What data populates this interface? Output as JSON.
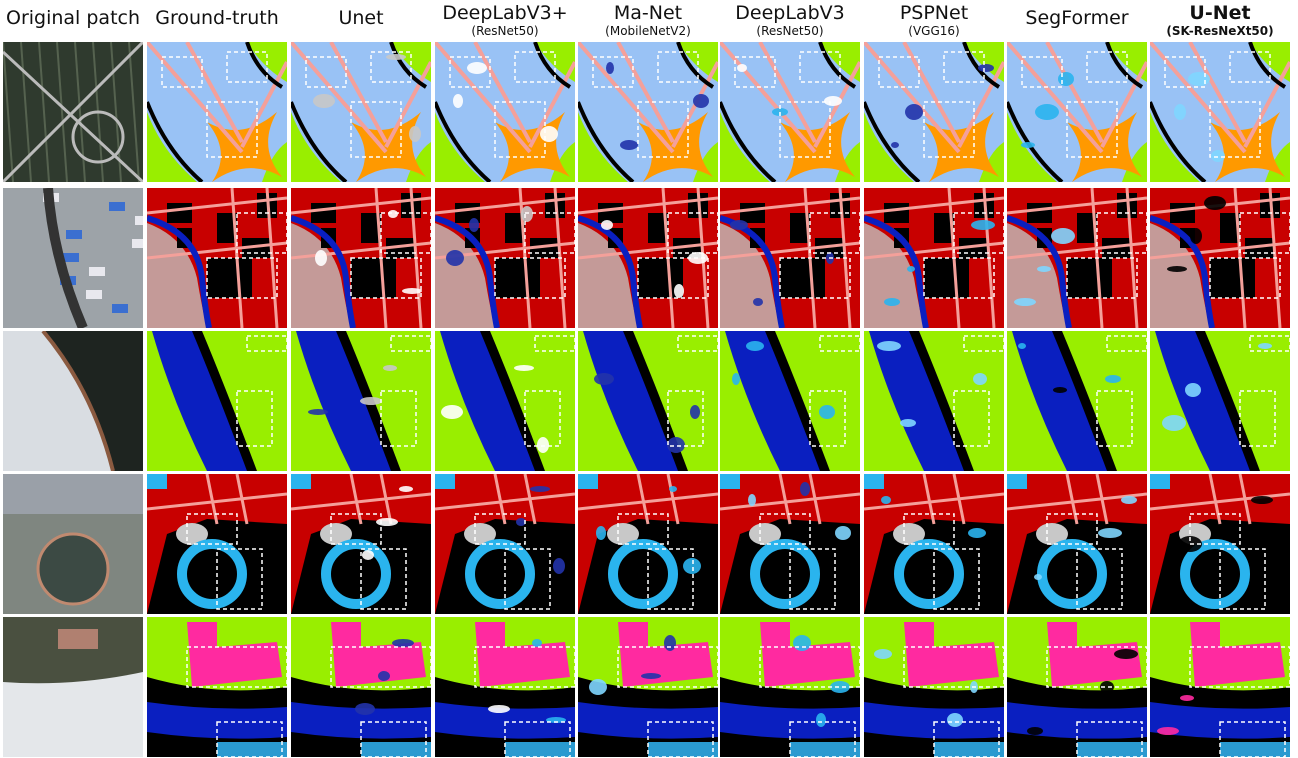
{
  "headers": [
    {
      "title": "Original patch"
    },
    {
      "title": "Ground-truth"
    },
    {
      "title": "Unet"
    },
    {
      "title": "DeepLabV3+",
      "subtitle": "(ResNet50)"
    },
    {
      "title": "Ma-Net",
      "subtitle": "(MobileNetV2)"
    },
    {
      "title": "DeepLabV3",
      "subtitle": "(ResNet50)"
    },
    {
      "title": "PSPNet",
      "subtitle": "(VGG16)"
    },
    {
      "title": "SegFormer"
    },
    {
      "title": "U-Net",
      "subtitle": "(SK-ResNeXt50)"
    }
  ]
}
